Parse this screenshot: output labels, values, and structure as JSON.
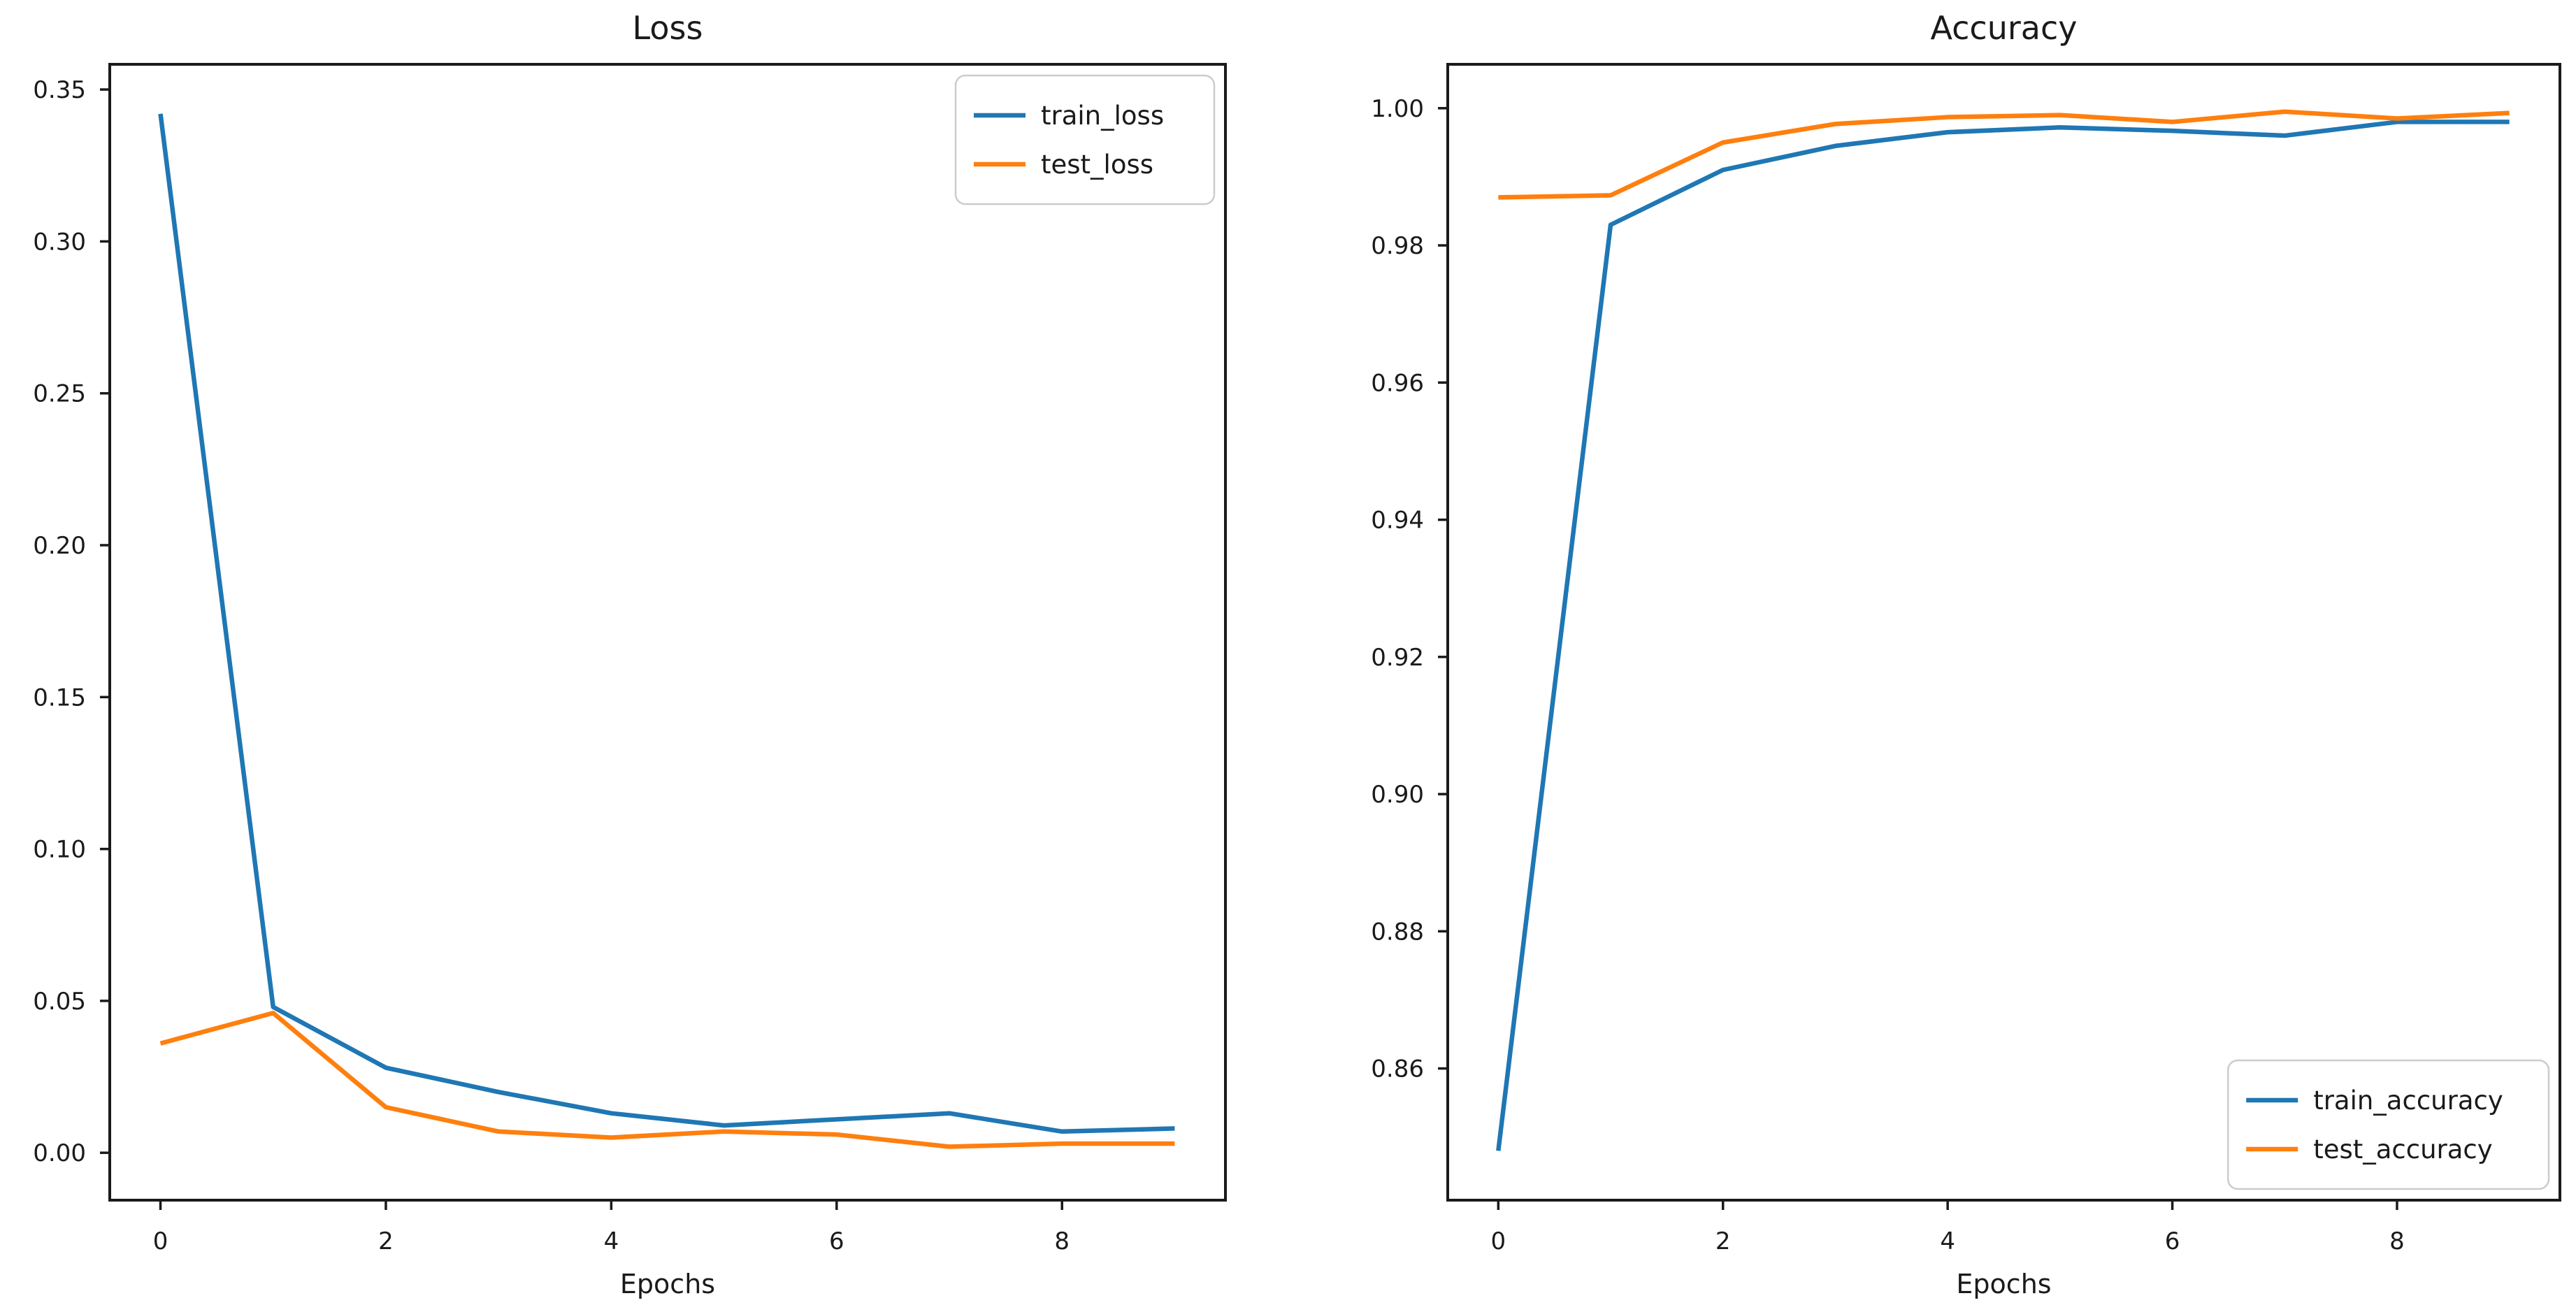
{
  "figure_background": "#ffffff",
  "chart_data": [
    {
      "type": "line",
      "title": "Loss",
      "xlabel": "Epochs",
      "ylabel": "",
      "grid": false,
      "legend_position": "upper-right",
      "x": [
        0,
        1,
        2,
        3,
        4,
        5,
        6,
        7,
        8,
        9
      ],
      "series": [
        {
          "name": "train_loss",
          "color": "#1f77b4",
          "values": [
            0.342,
            0.048,
            0.028,
            0.02,
            0.013,
            0.009,
            0.011,
            0.013,
            0.007,
            0.008
          ]
        },
        {
          "name": "test_loss",
          "color": "#ff7f0e",
          "values": [
            0.036,
            0.046,
            0.015,
            0.007,
            0.005,
            0.007,
            0.006,
            0.002,
            0.003,
            0.003
          ]
        }
      ],
      "xlim": [
        -0.45,
        9.45
      ],
      "ylim": [
        -0.0156,
        0.3583
      ],
      "xticks": [
        0,
        2,
        4,
        6,
        8
      ],
      "xtick_labels": [
        "0",
        "2",
        "4",
        "6",
        "8"
      ],
      "yticks": [
        0.0,
        0.05,
        0.1,
        0.15,
        0.2,
        0.25,
        0.3,
        0.35
      ],
      "ytick_labels": [
        "0.00",
        "0.05",
        "0.10",
        "0.15",
        "0.20",
        "0.25",
        "0.30",
        "0.35"
      ]
    },
    {
      "type": "line",
      "title": "Accuracy",
      "xlabel": "Epochs",
      "ylabel": "",
      "grid": false,
      "legend_position": "lower-right",
      "x": [
        0,
        1,
        2,
        3,
        4,
        5,
        6,
        7,
        8,
        9
      ],
      "series": [
        {
          "name": "train_accuracy",
          "color": "#1f77b4",
          "values": [
            0.848,
            0.983,
            0.991,
            0.9945,
            0.9965,
            0.9972,
            0.9967,
            0.996,
            0.998,
            0.998
          ]
        },
        {
          "name": "test_accuracy",
          "color": "#ff7f0e",
          "values": [
            0.987,
            0.9873,
            0.995,
            0.9977,
            0.9987,
            0.999,
            0.998,
            0.9995,
            0.9985,
            0.9993
          ]
        }
      ],
      "xlim": [
        -0.45,
        9.45
      ],
      "ylim": [
        0.8408,
        1.0064
      ],
      "xticks": [
        0,
        2,
        4,
        6,
        8
      ],
      "xtick_labels": [
        "0",
        "2",
        "4",
        "6",
        "8"
      ],
      "yticks": [
        0.86,
        0.88,
        0.9,
        0.92,
        0.94,
        0.96,
        0.98,
        1.0
      ],
      "ytick_labels": [
        "0.86",
        "0.88",
        "0.90",
        "0.92",
        "0.94",
        "0.96",
        "0.98",
        "1.00"
      ]
    }
  ]
}
